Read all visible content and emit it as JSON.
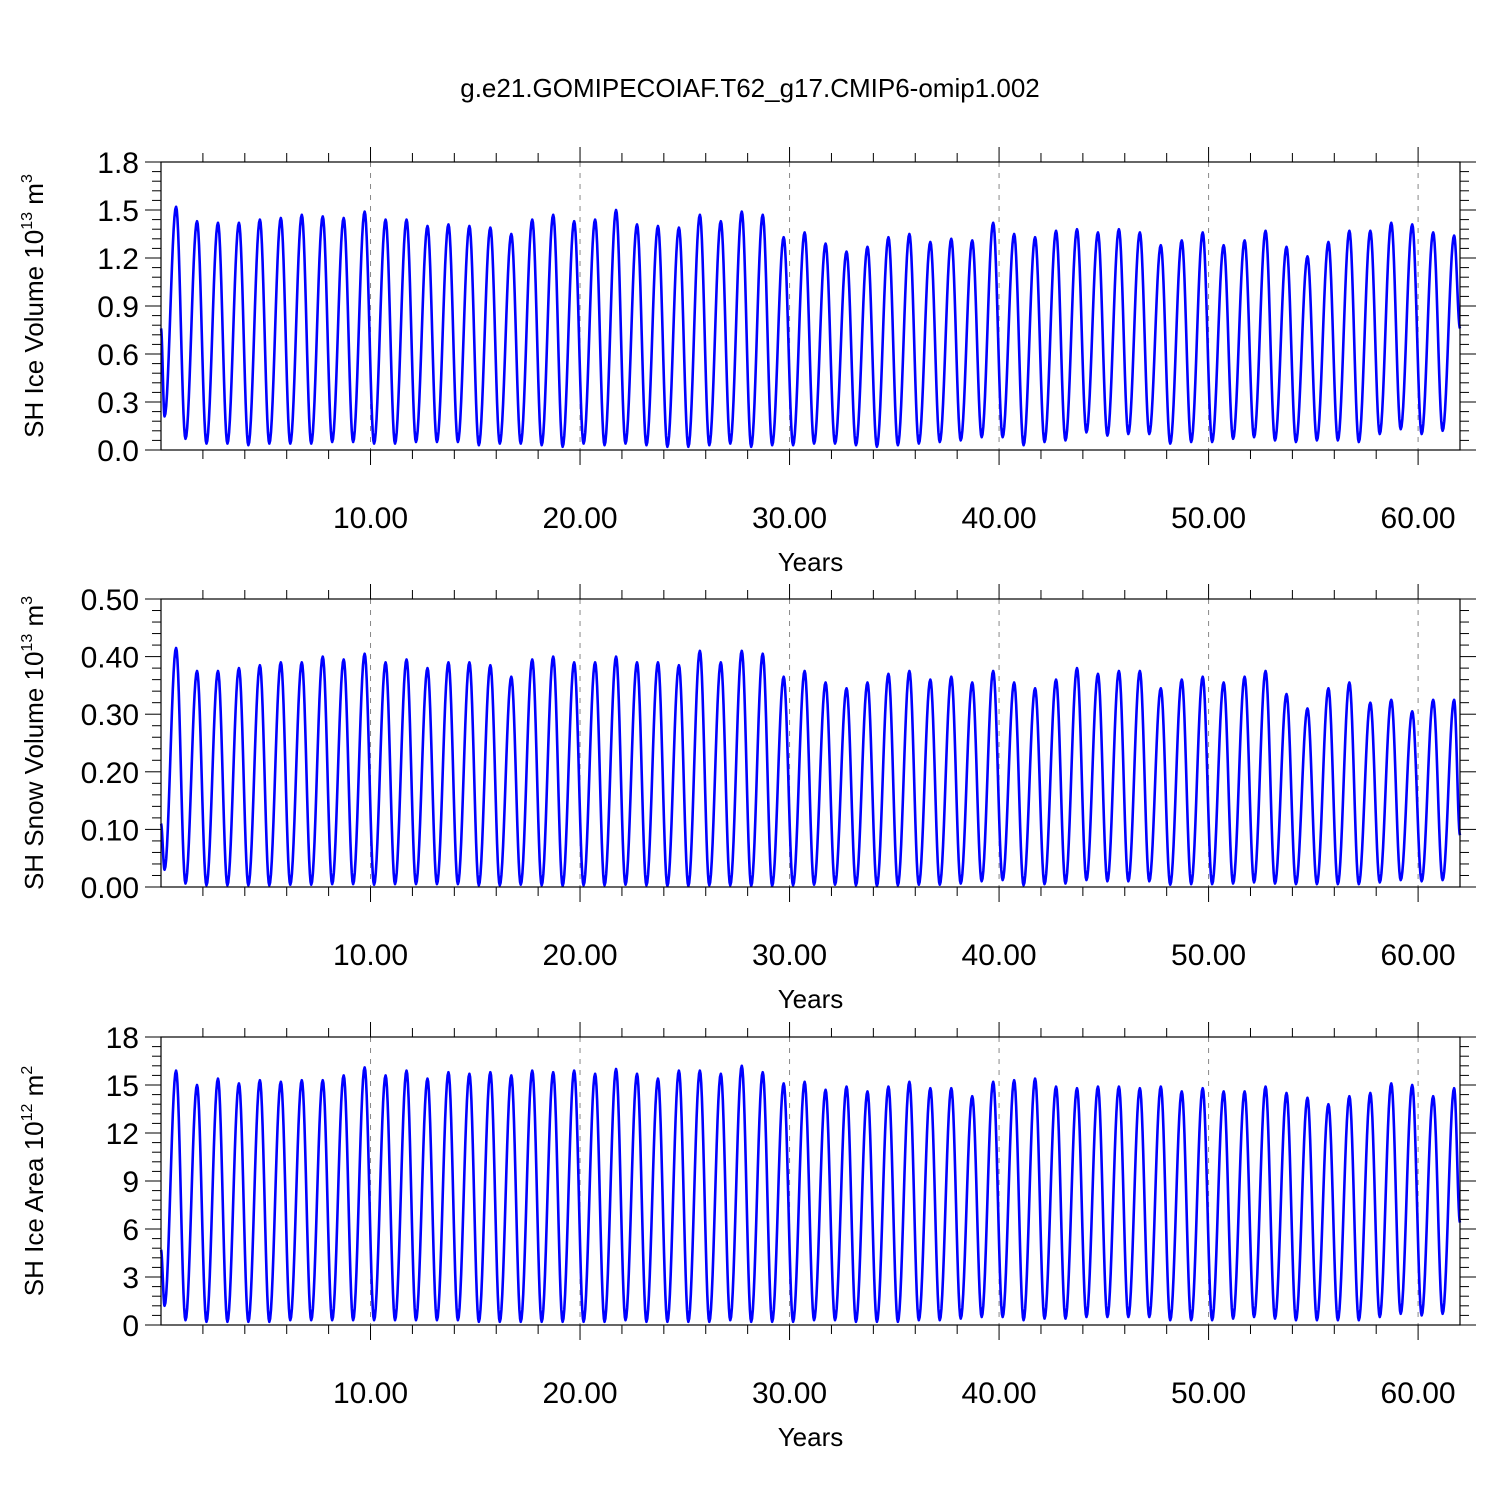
{
  "title": "g.e21.GOMIPECOIAF.T62_g17.CMIP6-omip1.002",
  "series_color": "#0000ff",
  "chart_data": [
    {
      "type": "line",
      "title": "",
      "xlabel": "Years",
      "ylabel": "SH Ice Volume 10",
      "ylabel_exp": "13",
      "ylabel_unit": " m",
      "ylabel_unit_exp": "3",
      "xlim": [
        0,
        62
      ],
      "ylim": [
        0,
        1.8
      ],
      "x_ticks": [
        10,
        20,
        30,
        40,
        50,
        60
      ],
      "x_tick_labels": [
        "10.00",
        "20.00",
        "30.00",
        "40.00",
        "50.00",
        "60.00"
      ],
      "y_ticks": [
        0,
        0.3,
        0.6,
        0.9,
        1.2,
        1.5,
        1.8
      ],
      "y_tick_labels": [
        "0.0",
        "0.3",
        "0.6",
        "0.9",
        "1.2",
        "1.5",
        "1.8"
      ],
      "grid": "vertical dashed at major x ticks",
      "start_value": 0.76,
      "end_value": 0.76,
      "first_min": 0.21,
      "series": [
        {
          "maxima": [
            1.52,
            1.43,
            1.42,
            1.42,
            1.44,
            1.45,
            1.47,
            1.46,
            1.45,
            1.49,
            1.44,
            1.44,
            1.4,
            1.41,
            1.4,
            1.39,
            1.35,
            1.44,
            1.47,
            1.43,
            1.44,
            1.5,
            1.41,
            1.4,
            1.39,
            1.47,
            1.43,
            1.49,
            1.47,
            1.33,
            1.36,
            1.29,
            1.24,
            1.27,
            1.33,
            1.35,
            1.3,
            1.32,
            1.31,
            1.42,
            1.35,
            1.33,
            1.37,
            1.38,
            1.36,
            1.38,
            1.36,
            1.28,
            1.31,
            1.36,
            1.28,
            1.31,
            1.37,
            1.27,
            1.21,
            1.3,
            1.37,
            1.37,
            1.42,
            1.41,
            1.36,
            1.34
          ],
          "minima": [
            0.07,
            0.04,
            0.04,
            0.03,
            0.04,
            0.04,
            0.04,
            0.05,
            0.05,
            0.04,
            0.04,
            0.05,
            0.05,
            0.05,
            0.03,
            0.04,
            0.04,
            0.03,
            0.02,
            0.04,
            0.03,
            0.04,
            0.03,
            0.02,
            0.02,
            0.03,
            0.04,
            0.02,
            0.03,
            0.03,
            0.04,
            0.04,
            0.03,
            0.02,
            0.03,
            0.04,
            0.05,
            0.06,
            0.08,
            0.08,
            0.03,
            0.05,
            0.06,
            0.11,
            0.09,
            0.1,
            0.1,
            0.04,
            0.05,
            0.05,
            0.07,
            0.08,
            0.06,
            0.05,
            0.06,
            0.06,
            0.05,
            0.1,
            0.13,
            0.1,
            0.12
          ]
        }
      ]
    },
    {
      "type": "line",
      "title": "",
      "xlabel": "Years",
      "ylabel": "SH Snow Volume 10",
      "ylabel_exp": "13",
      "ylabel_unit": " m",
      "ylabel_unit_exp": "3",
      "xlim": [
        0,
        62
      ],
      "ylim": [
        0,
        0.5
      ],
      "x_ticks": [
        10,
        20,
        30,
        40,
        50,
        60
      ],
      "x_tick_labels": [
        "10.00",
        "20.00",
        "30.00",
        "40.00",
        "50.00",
        "60.00"
      ],
      "y_ticks": [
        0,
        0.1,
        0.2,
        0.3,
        0.4,
        0.5
      ],
      "y_tick_labels": [
        "0.00",
        "0.10",
        "0.20",
        "0.30",
        "0.40",
        "0.50"
      ],
      "grid": "vertical dashed at major x ticks",
      "start_value": 0.11,
      "end_value": 0.09,
      "first_min": 0.03,
      "series": [
        {
          "maxima": [
            0.415,
            0.375,
            0.375,
            0.38,
            0.385,
            0.39,
            0.39,
            0.4,
            0.395,
            0.405,
            0.39,
            0.395,
            0.38,
            0.39,
            0.39,
            0.385,
            0.365,
            0.395,
            0.4,
            0.39,
            0.39,
            0.4,
            0.39,
            0.39,
            0.385,
            0.41,
            0.39,
            0.41,
            0.405,
            0.365,
            0.375,
            0.355,
            0.345,
            0.355,
            0.37,
            0.375,
            0.36,
            0.365,
            0.355,
            0.375,
            0.355,
            0.345,
            0.36,
            0.38,
            0.37,
            0.375,
            0.375,
            0.345,
            0.36,
            0.365,
            0.355,
            0.365,
            0.375,
            0.335,
            0.31,
            0.345,
            0.355,
            0.32,
            0.325,
            0.305,
            0.325,
            0.325
          ],
          "minima": [
            0.006,
            0.003,
            0.003,
            0.003,
            0.003,
            0.004,
            0.004,
            0.005,
            0.005,
            0.004,
            0.005,
            0.005,
            0.005,
            0.005,
            0.003,
            0.003,
            0.004,
            0.003,
            0.002,
            0.003,
            0.003,
            0.004,
            0.003,
            0.002,
            0.002,
            0.003,
            0.003,
            0.002,
            0.002,
            0.003,
            0.004,
            0.004,
            0.003,
            0.002,
            0.003,
            0.004,
            0.004,
            0.006,
            0.01,
            0.012,
            0.003,
            0.005,
            0.006,
            0.012,
            0.01,
            0.01,
            0.01,
            0.004,
            0.005,
            0.005,
            0.006,
            0.008,
            0.006,
            0.005,
            0.005,
            0.005,
            0.005,
            0.008,
            0.012,
            0.01,
            0.012
          ]
        }
      ]
    },
    {
      "type": "line",
      "title": "",
      "xlabel": "Years",
      "ylabel": "SH Ice Area 10",
      "ylabel_exp": "12",
      "ylabel_unit": " m",
      "ylabel_unit_exp": "2",
      "xlim": [
        0,
        62
      ],
      "ylim": [
        0,
        18
      ],
      "x_ticks": [
        10,
        20,
        30,
        40,
        50,
        60
      ],
      "x_tick_labels": [
        "10.00",
        "20.00",
        "30.00",
        "40.00",
        "50.00",
        "60.00"
      ],
      "y_ticks": [
        0,
        3,
        6,
        9,
        12,
        15,
        18
      ],
      "y_tick_labels": [
        "0",
        "3",
        "6",
        "9",
        "12",
        "15",
        "18"
      ],
      "grid": "vertical dashed at major x ticks",
      "start_value": 4.7,
      "end_value": 6.4,
      "first_min": 1.2,
      "series": [
        {
          "maxima": [
            15.9,
            15.0,
            15.4,
            15.1,
            15.3,
            15.2,
            15.3,
            15.3,
            15.6,
            16.1,
            15.6,
            15.9,
            15.4,
            15.8,
            15.7,
            15.8,
            15.6,
            15.9,
            15.8,
            15.9,
            15.7,
            16.0,
            15.7,
            15.4,
            15.9,
            15.9,
            15.7,
            16.2,
            15.8,
            15.1,
            15.2,
            14.7,
            14.9,
            14.6,
            14.9,
            15.2,
            14.8,
            14.8,
            14.3,
            15.2,
            15.3,
            15.4,
            14.9,
            14.8,
            14.9,
            14.9,
            14.8,
            14.9,
            14.6,
            14.8,
            14.6,
            14.6,
            14.9,
            14.5,
            14.2,
            13.8,
            14.3,
            14.5,
            15.1,
            15.0,
            14.3,
            14.8
          ],
          "minima": [
            0.3,
            0.2,
            0.2,
            0.2,
            0.2,
            0.3,
            0.3,
            0.3,
            0.3,
            0.3,
            0.3,
            0.3,
            0.3,
            0.3,
            0.2,
            0.2,
            0.2,
            0.2,
            0.2,
            0.2,
            0.2,
            0.3,
            0.2,
            0.2,
            0.2,
            0.2,
            0.3,
            0.2,
            0.2,
            0.2,
            0.3,
            0.3,
            0.2,
            0.2,
            0.2,
            0.3,
            0.3,
            0.4,
            0.5,
            0.5,
            0.3,
            0.4,
            0.4,
            0.5,
            0.5,
            0.5,
            0.5,
            0.3,
            0.3,
            0.3,
            0.4,
            0.5,
            0.4,
            0.3,
            0.3,
            0.3,
            0.3,
            0.5,
            0.7,
            0.6,
            0.7
          ]
        }
      ]
    }
  ]
}
